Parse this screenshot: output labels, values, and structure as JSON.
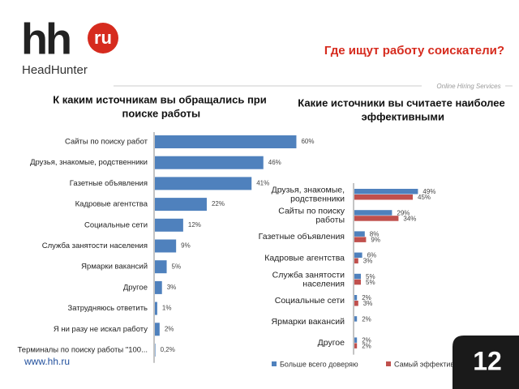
{
  "header": {
    "logo": "hh",
    "logo_badge": "ru",
    "brand": "HeadHunter",
    "title": "Где ищут работу соискатели?",
    "tagline": "Online Hiring Services"
  },
  "footer": {
    "url": "www.hh.ru",
    "page": "12"
  },
  "chart_data": [
    {
      "type": "bar",
      "orientation": "horizontal",
      "title": "К каким источникам вы обращались при поиске работы",
      "categories": [
        "Сайты по поиску работ",
        "Друзья, знакомые, родственники",
        "Газетные объявления",
        "Кадровые агентства",
        "Социальные сети",
        "Служба занятости населения",
        "Ярмарки вакансий",
        "Другое",
        "Затрудняюсь ответить",
        "Я ни разу не искал работу",
        "Терминалы по поиску работы \"100..."
      ],
      "values": [
        60,
        46,
        41,
        22,
        12,
        9,
        5,
        3,
        1,
        2,
        0.2
      ],
      "value_labels": [
        "60%",
        "46%",
        "41%",
        "22%",
        "12%",
        "9%",
        "5%",
        "3%",
        "1%",
        "2%",
        "0,2%"
      ],
      "color": "#4f81bd",
      "xlim": [
        0,
        65
      ]
    },
    {
      "type": "grouped-bar",
      "orientation": "horizontal",
      "title": "Какие источники вы считаете наиболее эффективными",
      "categories": [
        "Друзья, знакомые, родственники",
        "Сайты по поиску работы",
        "Газетные объявления",
        "Кадровые агентства",
        "Служба занятости населения",
        "Социальные сети",
        "Ярмарки вакансий",
        "Другое"
      ],
      "series": [
        {
          "name": "Больше всего доверяю",
          "color": "#4f81bd",
          "values": [
            49,
            29,
            8,
            6,
            5,
            2,
            2,
            2
          ],
          "value_labels": [
            "49%",
            "29%",
            "8%",
            "6%",
            "5%",
            "2%",
            "2%",
            "2%"
          ]
        },
        {
          "name": "Самый эффективный",
          "color": "#c0504d",
          "values": [
            45,
            34,
            9,
            3,
            5,
            3,
            null,
            2
          ],
          "value_labels": [
            "45%",
            "34%",
            "9%",
            "3%",
            "5%",
            "3%",
            null,
            "2%"
          ]
        }
      ],
      "xlim": [
        0,
        80
      ],
      "legend": "bottom"
    }
  ]
}
